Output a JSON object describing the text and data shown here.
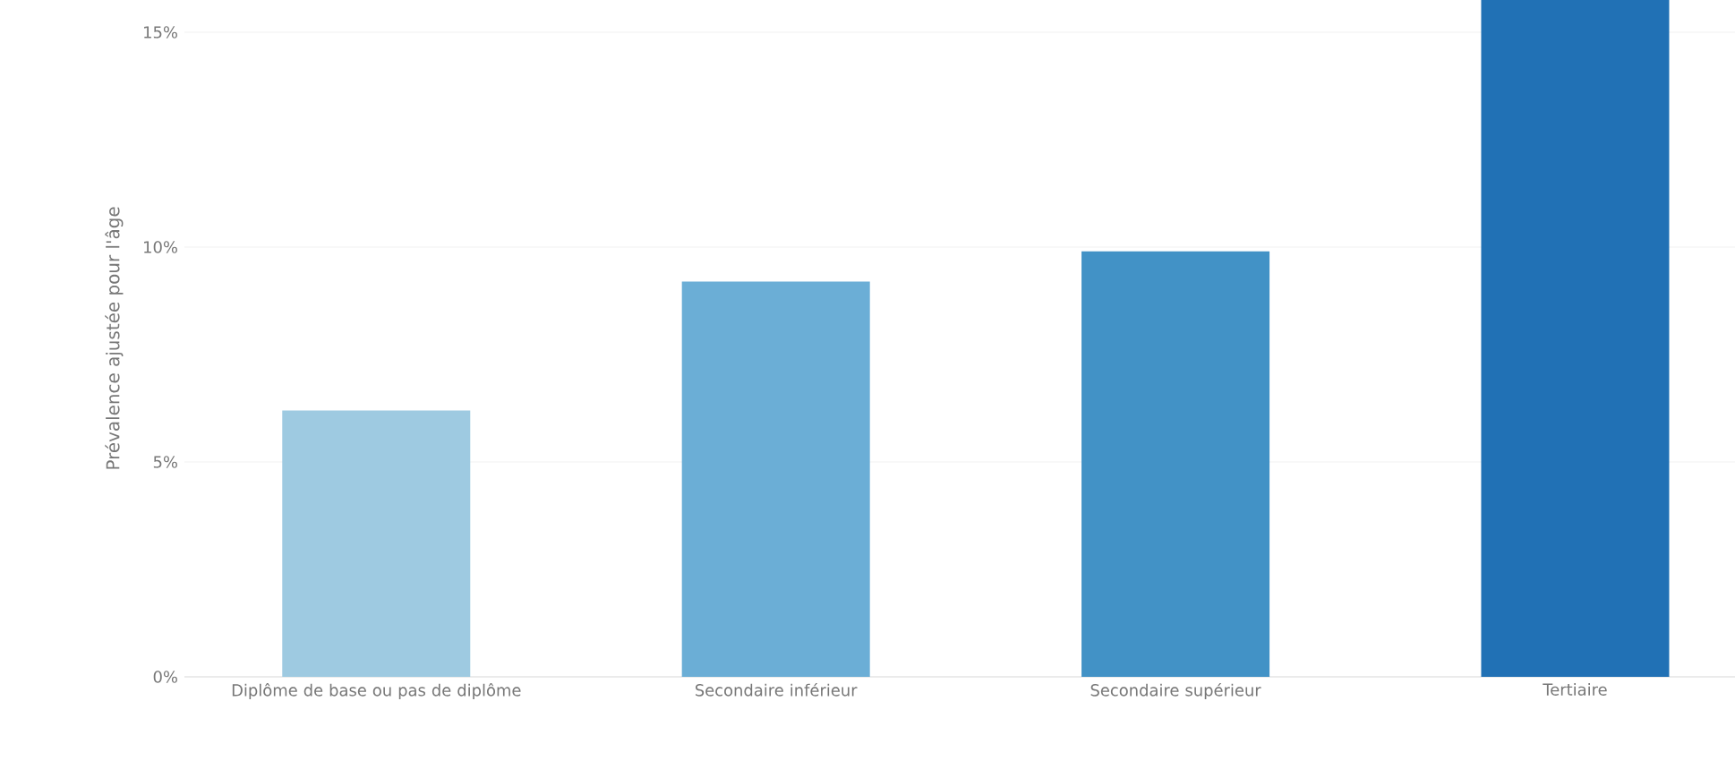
{
  "chart_data": {
    "type": "bar",
    "ylabel": "Prévalence ajustée pour l'âge",
    "categories": [
      "Diplôme de base ou pas de diplôme",
      "Secondaire inférieur",
      "Secondaire supérieur",
      "Tertiaire"
    ],
    "values": [
      6.2,
      9.2,
      9.9,
      15.75
    ],
    "colors": [
      "#9ecae1",
      "#6baed6",
      "#4292c6",
      "#2171b5"
    ],
    "ylim": [
      0,
      15.75
    ],
    "yticks": [
      {
        "value": 0,
        "label": "0%"
      },
      {
        "value": 5,
        "label": "5%"
      },
      {
        "value": 10,
        "label": "10%"
      },
      {
        "value": 15,
        "label": "15%"
      }
    ],
    "grid": "y"
  }
}
